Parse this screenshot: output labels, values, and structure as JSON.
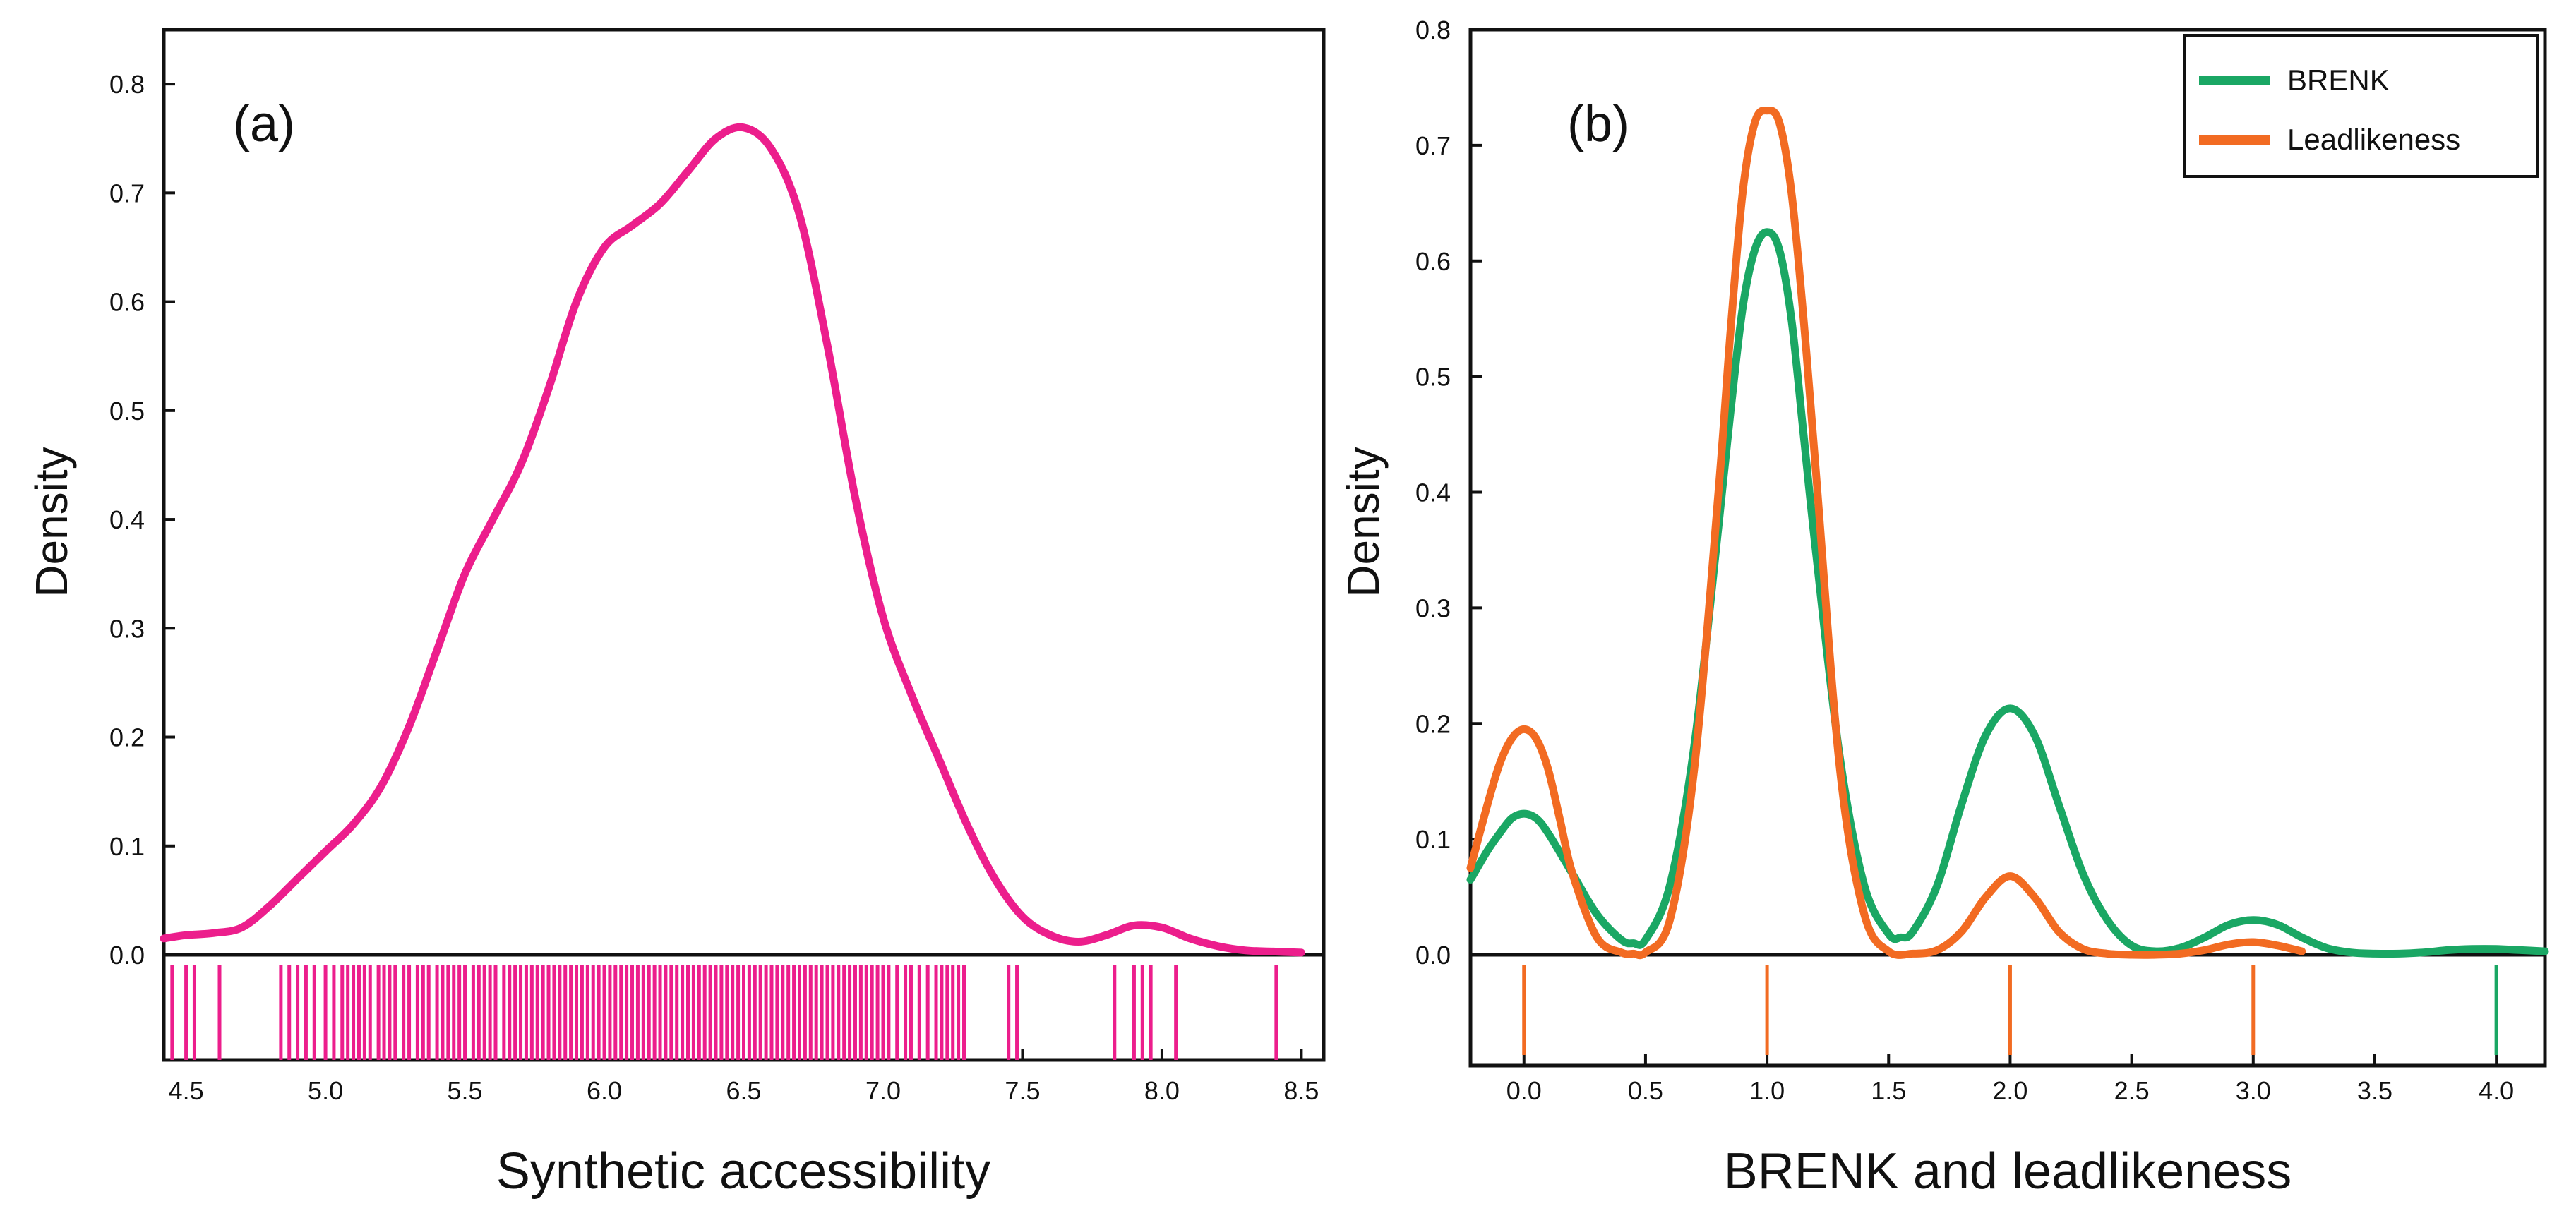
{
  "chart_data": [
    {
      "type": "line",
      "panel_label": "(a)",
      "title": "",
      "xlabel": "Synthetic accessibility",
      "ylabel": "Density",
      "xlim": [
        4.42,
        8.58
      ],
      "ylim": [
        0.0,
        0.85
      ],
      "x_ticks": [
        4.5,
        5.0,
        5.5,
        6.0,
        6.5,
        7.0,
        7.5,
        8.0,
        8.5
      ],
      "x_tick_labels": [
        "4.5",
        "5.0",
        "5.5",
        "6.0",
        "6.5",
        "7.0",
        "7.5",
        "8.0",
        "8.5"
      ],
      "y_ticks": [
        0.0,
        0.1,
        0.2,
        0.3,
        0.4,
        0.5,
        0.6,
        0.7,
        0.8
      ],
      "y_tick_labels": [
        "0.0",
        "0.1",
        "0.2",
        "0.3",
        "0.4",
        "0.5",
        "0.6",
        "0.7",
        "0.8"
      ],
      "grid": false,
      "legend": null,
      "series": [
        {
          "name": "Synthetic accessibility",
          "color": "#ec1e8c",
          "x": [
            4.42,
            4.5,
            4.6,
            4.7,
            4.8,
            4.9,
            5.0,
            5.1,
            5.2,
            5.3,
            5.4,
            5.5,
            5.6,
            5.7,
            5.8,
            5.9,
            6.0,
            6.1,
            6.2,
            6.3,
            6.4,
            6.5,
            6.6,
            6.7,
            6.8,
            6.9,
            7.0,
            7.1,
            7.2,
            7.3,
            7.4,
            7.5,
            7.6,
            7.7,
            7.8,
            7.9,
            8.0,
            8.1,
            8.2,
            8.3,
            8.4,
            8.5
          ],
          "y": [
            0.015,
            0.018,
            0.02,
            0.025,
            0.045,
            0.07,
            0.095,
            0.12,
            0.155,
            0.21,
            0.28,
            0.35,
            0.4,
            0.45,
            0.52,
            0.6,
            0.65,
            0.67,
            0.69,
            0.72,
            0.75,
            0.76,
            0.74,
            0.68,
            0.56,
            0.42,
            0.31,
            0.24,
            0.18,
            0.12,
            0.07,
            0.035,
            0.018,
            0.012,
            0.018,
            0.027,
            0.025,
            0.015,
            0.008,
            0.004,
            0.003,
            0.002
          ]
        }
      ],
      "rug": {
        "color": "#ec1e8c",
        "values": [
          4.45,
          4.5,
          4.53,
          4.62,
          4.84,
          4.87,
          4.9,
          4.93,
          4.96,
          5.0,
          5.03,
          5.06,
          5.08,
          5.1,
          5.12,
          5.14,
          5.16,
          5.19,
          5.21,
          5.23,
          5.25,
          5.28,
          5.3,
          5.33,
          5.35,
          5.37,
          5.4,
          5.42,
          5.44,
          5.46,
          5.48,
          5.5,
          5.53,
          5.55,
          5.57,
          5.59,
          5.61,
          5.64,
          5.66,
          5.68,
          5.7,
          5.72,
          5.74,
          5.76,
          5.78,
          5.8,
          5.82,
          5.84,
          5.86,
          5.88,
          5.9,
          5.92,
          5.94,
          5.96,
          5.98,
          6.0,
          6.02,
          6.04,
          6.06,
          6.08,
          6.1,
          6.12,
          6.14,
          6.16,
          6.18,
          6.2,
          6.22,
          6.24,
          6.26,
          6.28,
          6.3,
          6.32,
          6.34,
          6.36,
          6.38,
          6.4,
          6.42,
          6.44,
          6.46,
          6.48,
          6.5,
          6.52,
          6.54,
          6.56,
          6.58,
          6.6,
          6.62,
          6.64,
          6.66,
          6.68,
          6.7,
          6.72,
          6.74,
          6.76,
          6.78,
          6.8,
          6.82,
          6.84,
          6.86,
          6.88,
          6.9,
          6.92,
          6.94,
          6.96,
          6.98,
          7.0,
          7.02,
          7.05,
          7.08,
          7.1,
          7.13,
          7.16,
          7.19,
          7.21,
          7.23,
          7.25,
          7.27,
          7.29,
          7.45,
          7.48,
          7.83,
          7.9,
          7.93,
          7.96,
          8.05,
          8.41
        ]
      }
    },
    {
      "type": "line",
      "panel_label": "(b)",
      "title": "",
      "xlabel": "BRENK and leadlikeness",
      "ylabel": "Density",
      "xlim": [
        -0.22,
        4.2
      ],
      "ylim": [
        0.0,
        0.8
      ],
      "x_ticks": [
        0.0,
        0.5,
        1.0,
        1.5,
        2.0,
        2.5,
        3.0,
        3.5,
        4.0
      ],
      "x_tick_labels": [
        "0.0",
        "0.5",
        "1.0",
        "1.5",
        "2.0",
        "2.5",
        "3.0",
        "3.5",
        "4.0"
      ],
      "y_ticks": [
        0.0,
        0.1,
        0.2,
        0.3,
        0.4,
        0.5,
        0.6,
        0.7,
        0.8
      ],
      "y_tick_labels": [
        "0.0",
        "0.1",
        "0.2",
        "0.3",
        "0.4",
        "0.5",
        "0.6",
        "0.7",
        "0.8"
      ],
      "grid": false,
      "legend": "top-right",
      "series": [
        {
          "name": "BRENK",
          "color": "#1aa764",
          "x": [
            -0.22,
            -0.15,
            -0.1,
            -0.05,
            0.0,
            0.05,
            0.1,
            0.2,
            0.3,
            0.4,
            0.45,
            0.5,
            0.6,
            0.7,
            0.8,
            0.85,
            0.9,
            0.95,
            1.0,
            1.05,
            1.1,
            1.15,
            1.2,
            1.3,
            1.4,
            1.5,
            1.55,
            1.6,
            1.7,
            1.8,
            1.9,
            2.0,
            2.1,
            2.2,
            2.3,
            2.4,
            2.5,
            2.6,
            2.7,
            2.8,
            2.9,
            3.0,
            3.1,
            3.2,
            3.3,
            3.4,
            3.5,
            3.6,
            3.7,
            3.8,
            3.9,
            4.0,
            4.1,
            4.2
          ],
          "y": [
            0.065,
            0.09,
            0.105,
            0.118,
            0.122,
            0.118,
            0.105,
            0.07,
            0.035,
            0.013,
            0.01,
            0.013,
            0.06,
            0.18,
            0.37,
            0.47,
            0.56,
            0.61,
            0.625,
            0.61,
            0.55,
            0.45,
            0.35,
            0.17,
            0.06,
            0.018,
            0.015,
            0.02,
            0.06,
            0.13,
            0.19,
            0.213,
            0.19,
            0.13,
            0.07,
            0.03,
            0.008,
            0.003,
            0.006,
            0.015,
            0.026,
            0.03,
            0.026,
            0.015,
            0.006,
            0.002,
            0.001,
            0.001,
            0.002,
            0.004,
            0.005,
            0.005,
            0.004,
            0.003
          ]
        },
        {
          "name": "Leadlikeness",
          "color": "#f26b22",
          "x": [
            -0.22,
            -0.15,
            -0.1,
            -0.05,
            0.0,
            0.05,
            0.1,
            0.15,
            0.2,
            0.3,
            0.4,
            0.45,
            0.5,
            0.6,
            0.7,
            0.8,
            0.85,
            0.9,
            0.95,
            1.0,
            1.05,
            1.1,
            1.15,
            1.2,
            1.3,
            1.4,
            1.5,
            1.6,
            1.7,
            1.8,
            1.9,
            2.0,
            2.1,
            2.2,
            2.3,
            2.4,
            2.5,
            2.6,
            2.7,
            2.8,
            2.9,
            3.0,
            3.1,
            3.2
          ],
          "y": [
            0.075,
            0.13,
            0.165,
            0.187,
            0.195,
            0.187,
            0.16,
            0.115,
            0.07,
            0.015,
            0.002,
            0.001,
            0.002,
            0.03,
            0.16,
            0.4,
            0.54,
            0.66,
            0.72,
            0.73,
            0.72,
            0.66,
            0.55,
            0.42,
            0.16,
            0.035,
            0.003,
            0.001,
            0.004,
            0.02,
            0.05,
            0.068,
            0.05,
            0.02,
            0.005,
            0.001,
            0.0,
            0.0,
            0.001,
            0.004,
            0.009,
            0.011,
            0.008,
            0.003
          ]
        }
      ],
      "rug": {
        "marks": [
          {
            "value": 0.0,
            "color": "#f26b22"
          },
          {
            "value": 1.0,
            "color": "#f26b22"
          },
          {
            "value": 2.0,
            "color": "#f26b22"
          },
          {
            "value": 3.0,
            "color": "#f26b22"
          },
          {
            "value": 4.0,
            "color": "#1aa764"
          }
        ]
      }
    }
  ]
}
